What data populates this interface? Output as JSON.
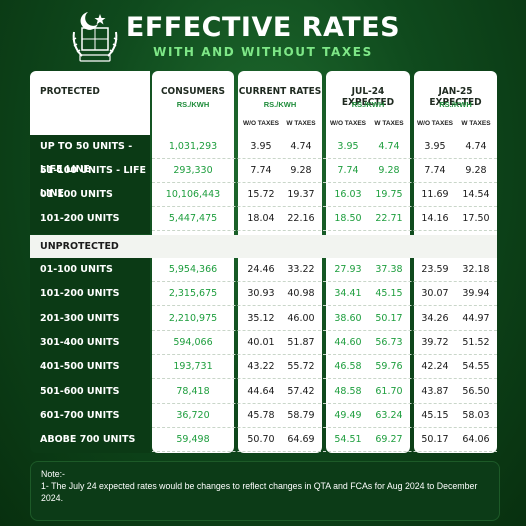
{
  "header": {
    "title": "EFFECTIVE RATES",
    "subtitle": "WITH AND WITHOUT TAXES"
  },
  "table": {
    "col_protected": "PROTECTED",
    "col_consumers": "CONSUMERS",
    "col_consumers_unit": "RS./KWH",
    "col_current": "CURRENT RATES",
    "col_current_unit": "RS./KWH",
    "col_jul": "JUL-24 EXPECTED",
    "col_jul_unit": "RS./KWH",
    "col_jan": "JAN-25 EXPECTED",
    "col_jan_unit": "RS./KWH",
    "sub_wo": "W/O TAXES",
    "sub_w": "W TAXES",
    "section_unprotected": "UNPROTECTED",
    "protected_rows": [
      {
        "label": "UP TO 50 UNITS - LIFE LINE",
        "consumers": "1,031,293",
        "cur_wo": "3.95",
        "cur_w": "4.74",
        "jul_wo": "3.95",
        "jul_w": "4.74",
        "jan_wo": "3.95",
        "jan_w": "4.74"
      },
      {
        "label": "51-100 UNITS - LIFE LINE",
        "consumers": "293,330",
        "cur_wo": "7.74",
        "cur_w": "9.28",
        "jul_wo": "7.74",
        "jul_w": "9.28",
        "jan_wo": "7.74",
        "jan_w": "9.28"
      },
      {
        "label": "01-100 UNITS",
        "consumers": "10,106,443",
        "cur_wo": "15.72",
        "cur_w": "19.37",
        "jul_wo": "16.03",
        "jul_w": "19.75",
        "jan_wo": "11.69",
        "jan_w": "14.54"
      },
      {
        "label": "101-200 UNITS",
        "consumers": "5,447,475",
        "cur_wo": "18.04",
        "cur_w": "22.16",
        "jul_wo": "18.50",
        "jul_w": "22.71",
        "jan_wo": "14.16",
        "jan_w": "17.50"
      }
    ],
    "unprotected_rows": [
      {
        "label": "01-100 UNITS",
        "consumers": "5,954,366",
        "cur_wo": "24.46",
        "cur_w": "33.22",
        "jul_wo": "27.93",
        "jul_w": "37.38",
        "jan_wo": "23.59",
        "jan_w": "32.18"
      },
      {
        "label": "101-200 UNITS",
        "consumers": "2,315,675",
        "cur_wo": "30.93",
        "cur_w": "40.98",
        "jul_wo": "34.41",
        "jul_w": "45.15",
        "jan_wo": "30.07",
        "jan_w": "39.94"
      },
      {
        "label": "201-300 UNITS",
        "consumers": "2,210,975",
        "cur_wo": "35.12",
        "cur_w": "46.00",
        "jul_wo": "38.60",
        "jul_w": "50.17",
        "jan_wo": "34.26",
        "jan_w": "44.97"
      },
      {
        "label": "301-400 UNITS",
        "consumers": "594,066",
        "cur_wo": "40.01",
        "cur_w": "51.87",
        "jul_wo": "44.60",
        "jul_w": "56.73",
        "jan_wo": "39.72",
        "jan_w": "51.52"
      },
      {
        "label": "401-500 UNITS",
        "consumers": "193,731",
        "cur_wo": "43.22",
        "cur_w": "55.72",
        "jul_wo": "46.58",
        "jul_w": "59.76",
        "jan_wo": "42.24",
        "jan_w": "54.55"
      },
      {
        "label": "501-600 UNITS",
        "consumers": "78,418",
        "cur_wo": "44.64",
        "cur_w": "57.42",
        "jul_wo": "48.58",
        "jul_w": "61.70",
        "jan_wo": "43.87",
        "jan_w": "56.50"
      },
      {
        "label": "601-700 UNITS",
        "consumers": "36,720",
        "cur_wo": "45.78",
        "cur_w": "58.79",
        "jul_wo": "49.49",
        "jul_w": "63.24",
        "jan_wo": "45.15",
        "jan_w": "58.03"
      },
      {
        "label": "ABOBE 700 UNITS",
        "consumers": "59,498",
        "cur_wo": "50.70",
        "cur_w": "64.69",
        "jul_wo": "54.51",
        "jul_w": "69.27",
        "jan_wo": "50.17",
        "jan_w": "64.06"
      }
    ]
  },
  "note": {
    "heading": "Note:-",
    "text": "1- The July 24 expected rates would be changes to reflect changes in QTA and FCAs for Aug 2024 to December 2024."
  },
  "colors": {
    "accent_green": "#1e9e3e",
    "dark_green": "#0b3a15",
    "light_green": "#7ee787"
  }
}
